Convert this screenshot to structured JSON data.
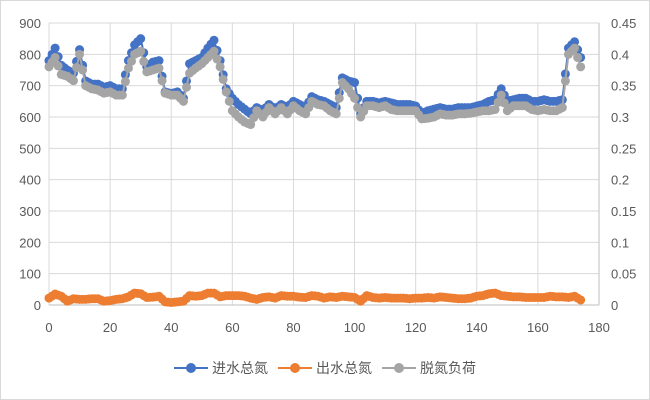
{
  "chart_data": {
    "type": "line",
    "title": "",
    "xlabel": "",
    "ylabel": "",
    "y2label": "",
    "xlim": [
      0,
      180
    ],
    "ylim": [
      0,
      900
    ],
    "y2lim": [
      0,
      0.45
    ],
    "grid": true,
    "legend_position": "bottom",
    "x_ticks": [
      "0",
      "20",
      "40",
      "60",
      "80",
      "100",
      "120",
      "140",
      "160",
      "180"
    ],
    "y_ticks": [
      "0",
      "100",
      "200",
      "300",
      "400",
      "500",
      "600",
      "700",
      "800",
      "900"
    ],
    "y2_ticks": [
      "0",
      "0.05",
      "0.1",
      "0.15",
      "0.2",
      "0.25",
      "0.3",
      "0.35",
      "0.4",
      "0.45"
    ],
    "x": [
      0,
      2,
      4,
      6,
      8,
      10,
      12,
      14,
      16,
      18,
      20,
      22,
      24,
      26,
      28,
      30,
      32,
      34,
      36,
      38,
      40,
      42,
      44,
      46,
      48,
      50,
      52,
      54,
      56,
      58,
      60,
      62,
      64,
      66,
      68,
      70,
      72,
      74,
      76,
      78,
      80,
      82,
      84,
      86,
      88,
      90,
      92,
      94,
      96,
      98,
      100,
      102,
      104,
      106,
      108,
      110,
      112,
      114,
      116,
      118,
      120,
      122,
      124,
      126,
      128,
      130,
      132,
      134,
      136,
      138,
      140,
      142,
      144,
      146,
      148,
      150,
      152,
      154,
      156,
      158,
      160,
      162,
      164,
      166,
      168,
      170,
      172,
      174
    ],
    "series": [
      {
        "name": "进水总氮",
        "color": "#4472c4",
        "axis": "left",
        "values": [
          780,
          820,
          765,
          750,
          740,
          815,
          715,
          705,
          705,
          695,
          700,
          690,
          690,
          780,
          830,
          850,
          760,
          775,
          780,
          680,
          675,
          680,
          660,
          770,
          780,
          790,
          820,
          845,
          780,
          690,
          660,
          640,
          625,
          610,
          630,
          620,
          640,
          625,
          640,
          630,
          650,
          640,
          630,
          665,
          655,
          650,
          640,
          630,
          725,
          715,
          710,
          610,
          650,
          650,
          645,
          650,
          645,
          640,
          640,
          640,
          635,
          610,
          620,
          625,
          630,
          625,
          625,
          630,
          630,
          630,
          635,
          640,
          650,
          655,
          690,
          650,
          655,
          660,
          660,
          650,
          650,
          655,
          650,
          650,
          655,
          820,
          840,
          790
        ]
      },
      {
        "name": "出水总氮",
        "color": "#ed7d31",
        "axis": "left",
        "values": [
          22,
          35,
          28,
          12,
          20,
          18,
          18,
          20,
          20,
          12,
          14,
          18,
          20,
          26,
          38,
          36,
          24,
          25,
          28,
          10,
          8,
          10,
          12,
          30,
          28,
          30,
          38,
          38,
          26,
          30,
          30,
          30,
          28,
          22,
          18,
          24,
          26,
          22,
          30,
          28,
          28,
          25,
          24,
          30,
          28,
          22,
          26,
          24,
          28,
          26,
          24,
          12,
          30,
          24,
          22,
          24,
          22,
          22,
          22,
          20,
          22,
          22,
          24,
          22,
          26,
          24,
          22,
          20,
          20,
          22,
          28,
          30,
          36,
          38,
          30,
          28,
          26,
          26,
          24,
          24,
          24,
          24,
          28,
          26,
          26,
          24,
          28,
          16
        ]
      },
      {
        "name": "脱氮负荷",
        "color": "#a5a5a5",
        "axis": "right",
        "values": [
          0.38,
          0.395,
          0.368,
          0.365,
          0.358,
          0.4,
          0.35,
          0.345,
          0.343,
          0.338,
          0.34,
          0.335,
          0.335,
          0.378,
          0.4,
          0.405,
          0.372,
          0.375,
          0.378,
          0.338,
          0.335,
          0.335,
          0.325,
          0.37,
          0.378,
          0.385,
          0.395,
          0.405,
          0.38,
          0.34,
          0.31,
          0.3,
          0.292,
          0.288,
          0.31,
          0.3,
          0.315,
          0.305,
          0.315,
          0.305,
          0.318,
          0.31,
          0.305,
          0.325,
          0.32,
          0.318,
          0.31,
          0.305,
          0.355,
          0.345,
          0.33,
          0.3,
          0.318,
          0.318,
          0.315,
          0.318,
          0.312,
          0.31,
          0.31,
          0.31,
          0.31,
          0.297,
          0.298,
          0.3,
          0.305,
          0.303,
          0.303,
          0.305,
          0.305,
          0.306,
          0.308,
          0.31,
          0.31,
          0.312,
          0.335,
          0.31,
          0.318,
          0.318,
          0.318,
          0.312,
          0.31,
          0.312,
          0.31,
          0.31,
          0.315,
          0.4,
          0.41,
          0.38
        ]
      }
    ]
  },
  "legend": {
    "items": [
      {
        "label": "进水总氮",
        "color": "#4472c4"
      },
      {
        "label": "出水总氮",
        "color": "#ed7d31"
      },
      {
        "label": "脱氮负荷",
        "color": "#a5a5a5"
      }
    ]
  }
}
